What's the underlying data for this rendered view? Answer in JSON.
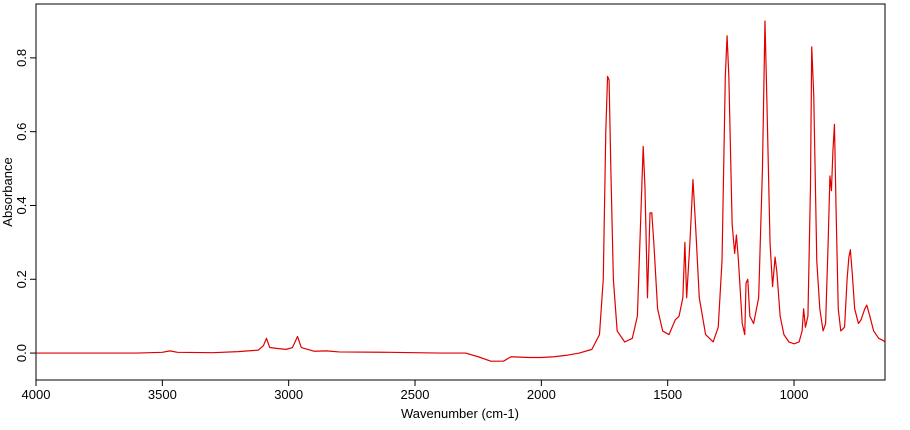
{
  "chart_data": {
    "type": "line",
    "x_label": "Wavenumber (cm-1)",
    "y_label": "Absorbance",
    "color": "#e00000",
    "xlim": [
      4000,
      640
    ],
    "ylim": [
      -0.073,
      0.946
    ],
    "xticks": [
      4000,
      3500,
      3000,
      2500,
      2000,
      1500,
      1000
    ],
    "yticks": [
      {
        "value": 0,
        "label": "0.0"
      },
      0.2,
      0.4,
      0.6,
      0.8
    ],
    "x": [
      4000,
      3800,
      3600,
      3500,
      3470,
      3440,
      3300,
      3200,
      3120,
      3100,
      3088,
      3075,
      3040,
      3010,
      2985,
      2965,
      2950,
      2900,
      2850,
      2800,
      2600,
      2400,
      2300,
      2250,
      2200,
      2150,
      2120,
      2050,
      2000,
      1950,
      1900,
      1850,
      1800,
      1770,
      1755,
      1745,
      1738,
      1732,
      1725,
      1715,
      1700,
      1670,
      1640,
      1620,
      1605,
      1597,
      1590,
      1580,
      1570,
      1563,
      1555,
      1540,
      1520,
      1495,
      1470,
      1455,
      1440,
      1432,
      1425,
      1412,
      1400,
      1390,
      1375,
      1350,
      1320,
      1300,
      1285,
      1272,
      1265,
      1258,
      1245,
      1235,
      1228,
      1220,
      1205,
      1195,
      1190,
      1183,
      1175,
      1160,
      1140,
      1125,
      1115,
      1108,
      1095,
      1085,
      1075,
      1068,
      1055,
      1040,
      1020,
      1000,
      980,
      968,
      962,
      955,
      945,
      935,
      930,
      922,
      910,
      898,
      885,
      875,
      865,
      858,
      852,
      846,
      840,
      834,
      825,
      815,
      800,
      790,
      783,
      777,
      770,
      760,
      745,
      735,
      720,
      712,
      700,
      685,
      665,
      650,
      640
    ],
    "values": [
      0.0,
      0.0,
      0.0,
      0.002,
      0.006,
      0.002,
      0.001,
      0.004,
      0.008,
      0.02,
      0.04,
      0.015,
      0.012,
      0.01,
      0.015,
      0.045,
      0.015,
      0.005,
      0.006,
      0.003,
      0.002,
      0.0,
      0.0,
      -0.01,
      -0.022,
      -0.022,
      -0.01,
      -0.012,
      -0.012,
      -0.01,
      -0.006,
      0.0,
      0.01,
      0.05,
      0.2,
      0.6,
      0.75,
      0.74,
      0.5,
      0.2,
      0.06,
      0.03,
      0.04,
      0.1,
      0.4,
      0.56,
      0.45,
      0.15,
      0.38,
      0.38,
      0.3,
      0.12,
      0.06,
      0.05,
      0.09,
      0.1,
      0.15,
      0.3,
      0.15,
      0.3,
      0.47,
      0.35,
      0.15,
      0.05,
      0.03,
      0.07,
      0.25,
      0.75,
      0.86,
      0.75,
      0.35,
      0.27,
      0.32,
      0.25,
      0.08,
      0.05,
      0.19,
      0.2,
      0.1,
      0.08,
      0.15,
      0.5,
      0.9,
      0.7,
      0.3,
      0.18,
      0.26,
      0.22,
      0.1,
      0.05,
      0.03,
      0.025,
      0.03,
      0.06,
      0.12,
      0.07,
      0.1,
      0.45,
      0.83,
      0.7,
      0.25,
      0.12,
      0.06,
      0.08,
      0.3,
      0.48,
      0.44,
      0.55,
      0.62,
      0.4,
      0.12,
      0.06,
      0.07,
      0.2,
      0.26,
      0.28,
      0.22,
      0.12,
      0.08,
      0.09,
      0.12,
      0.13,
      0.1,
      0.06,
      0.04,
      0.035,
      0.03
    ]
  }
}
